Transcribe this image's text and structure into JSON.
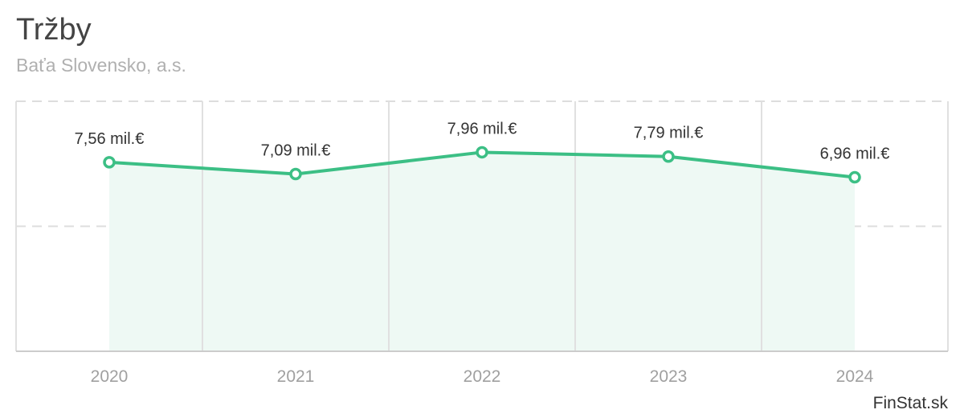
{
  "title": "Tržby",
  "subtitle": "Baťa Slovensko, a.s.",
  "brand": "FinStat.sk",
  "colors": {
    "line": "#3cbf85",
    "area": "#eef9f4",
    "grid_dashed": "#dddddd",
    "grid_vertical": "#e0e0e0",
    "axis": "#cccccc"
  },
  "chart_data": {
    "type": "area",
    "categories": [
      "2020",
      "2021",
      "2022",
      "2023",
      "2024"
    ],
    "values": [
      7.56,
      7.09,
      7.96,
      7.79,
      6.96
    ],
    "data_labels": [
      "7,56 mil.€",
      "7,09 mil.€",
      "7,96 mil.€",
      "7,79 mil.€",
      "6,96 mil.€"
    ],
    "ylim": [
      0,
      10
    ],
    "grid": true,
    "legend": "none"
  }
}
